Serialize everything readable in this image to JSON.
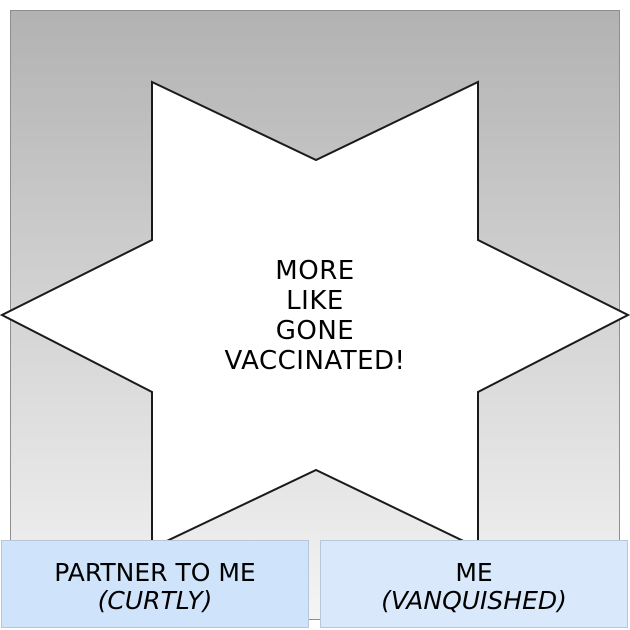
{
  "star": {
    "lines": [
      "MORE",
      "LIKE",
      "GONE",
      "VACCINATED!"
    ]
  },
  "captions": {
    "left": {
      "name": "PARTNER TO ME",
      "manner": "(CURTLY)"
    },
    "right": {
      "name": "ME",
      "manner": "(VANQUISHED)"
    }
  },
  "colors": {
    "panel_top": "#b2b2b2",
    "panel_bottom": "#f4f4f4",
    "caption_left_bg": "#cfe4fa",
    "caption_right_bg": "#d9e9fb"
  }
}
